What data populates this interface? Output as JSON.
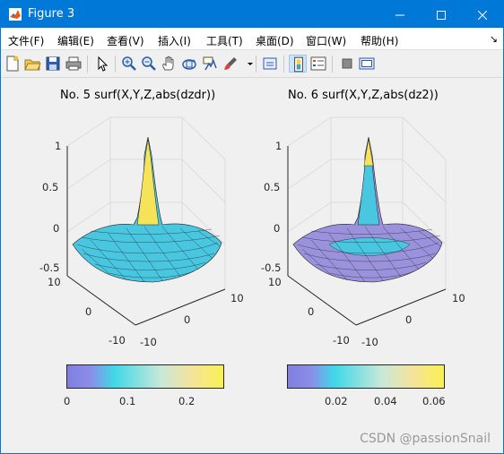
{
  "window": {
    "title": "Figure 3",
    "controls": [
      "minimize",
      "maximize",
      "close"
    ]
  },
  "menu": [
    {
      "label": "文件(F)"
    },
    {
      "label": "编辑(E)"
    },
    {
      "label": "查看(V)"
    },
    {
      "label": "插入(I)"
    },
    {
      "label": "工具(T)"
    },
    {
      "label": "桌面(D)"
    },
    {
      "label": "窗口(W)"
    },
    {
      "label": "帮助(H)"
    }
  ],
  "toolbar": {
    "items": [
      "new-figure-icon",
      "open-icon",
      "save-icon",
      "print-icon",
      "select-arrow-icon",
      "zoom-in-icon",
      "zoom-out-icon",
      "pan-hand-icon",
      "rotate-3d-icon",
      "data-cursor-icon",
      "brush-icon",
      "link-plot-icon",
      "colorbar-icon",
      "legend-icon",
      "hide-plot-tools-icon",
      "show-plot-tools-icon"
    ]
  },
  "plots": [
    {
      "title": "No. 5 surf(X,Y,Z,abs(dzdr))",
      "z_ticks": [
        "1",
        "0.5",
        "0",
        "-0.5"
      ],
      "y_ticks": [
        "10",
        "0",
        "-10"
      ],
      "x_ticks": [
        "10",
        "0",
        "-10"
      ],
      "colorbar_ticks": [
        "0",
        "0.1",
        "0.2"
      ]
    },
    {
      "title": "No. 6 surf(X,Y,Z,abs(dz2))",
      "z_ticks": [
        "1",
        "0.5",
        "0",
        "-0.5"
      ],
      "y_ticks": [
        "10",
        "0",
        "-10"
      ],
      "x_ticks": [
        "10",
        "0",
        "-10"
      ],
      "colorbar_ticks": [
        "0.02",
        "0.04",
        "0.06"
      ]
    }
  ],
  "watermark": "CSDN @passionSnail",
  "colors": {
    "titlebar": "#0078d7",
    "figure_bg": "#f0f0f0",
    "colormap": [
      "#7f7fe0",
      "#3fd8e8",
      "#f5e39a",
      "#f9f250"
    ]
  }
}
